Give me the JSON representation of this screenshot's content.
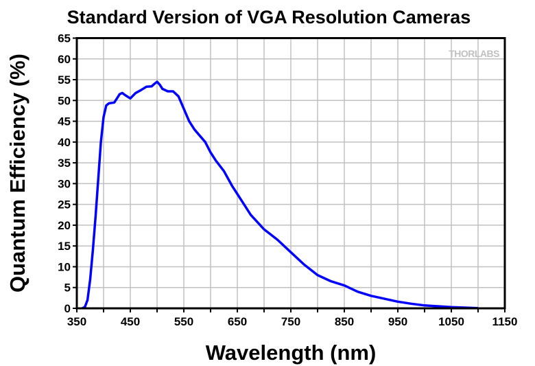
{
  "chart_data": {
    "type": "line",
    "title": "Standard Version of VGA Resolution Cameras",
    "xlabel": "Wavelength (nm)",
    "ylabel": "Quantum Efficiency (%)",
    "xlim": [
      350,
      1150
    ],
    "ylim": [
      0,
      65
    ],
    "xticks": [
      350,
      450,
      550,
      650,
      750,
      850,
      950,
      1050,
      1150
    ],
    "yticks": [
      0,
      5,
      10,
      15,
      20,
      25,
      30,
      35,
      40,
      45,
      50,
      55,
      60,
      65
    ],
    "grid": true,
    "line_color": "#0000ff",
    "watermark": "THORLABS",
    "series": [
      {
        "x": [
          360,
          365,
          370,
          375,
          380,
          385,
          390,
          395,
          400,
          405,
          410,
          420,
          425,
          430,
          435,
          440,
          450,
          460,
          470,
          480,
          490,
          495,
          500,
          505,
          510,
          520,
          530,
          540,
          550,
          560,
          570,
          580,
          590,
          600,
          610,
          625,
          640,
          650,
          660,
          675,
          700,
          710,
          725,
          750,
          775,
          800,
          825,
          850,
          875,
          900,
          925,
          950,
          975,
          1000,
          1050,
          1100
        ],
        "y": [
          0,
          0.3,
          2,
          7,
          14,
          22,
          31,
          40,
          46,
          48.8,
          49.3,
          49.5,
          50.5,
          51.5,
          51.8,
          51.3,
          50.5,
          51.8,
          52.5,
          53.3,
          53.4,
          54,
          54.5,
          53.8,
          52.8,
          52.2,
          52.2,
          51,
          48,
          45,
          43,
          41.5,
          40,
          37.5,
          35.5,
          33,
          29.5,
          27.5,
          25.5,
          22.5,
          19,
          18,
          16.5,
          13.5,
          10.5,
          8,
          6.5,
          5.5,
          4,
          3,
          2.3,
          1.6,
          1.1,
          0.7,
          0.3,
          0.05
        ]
      }
    ]
  }
}
